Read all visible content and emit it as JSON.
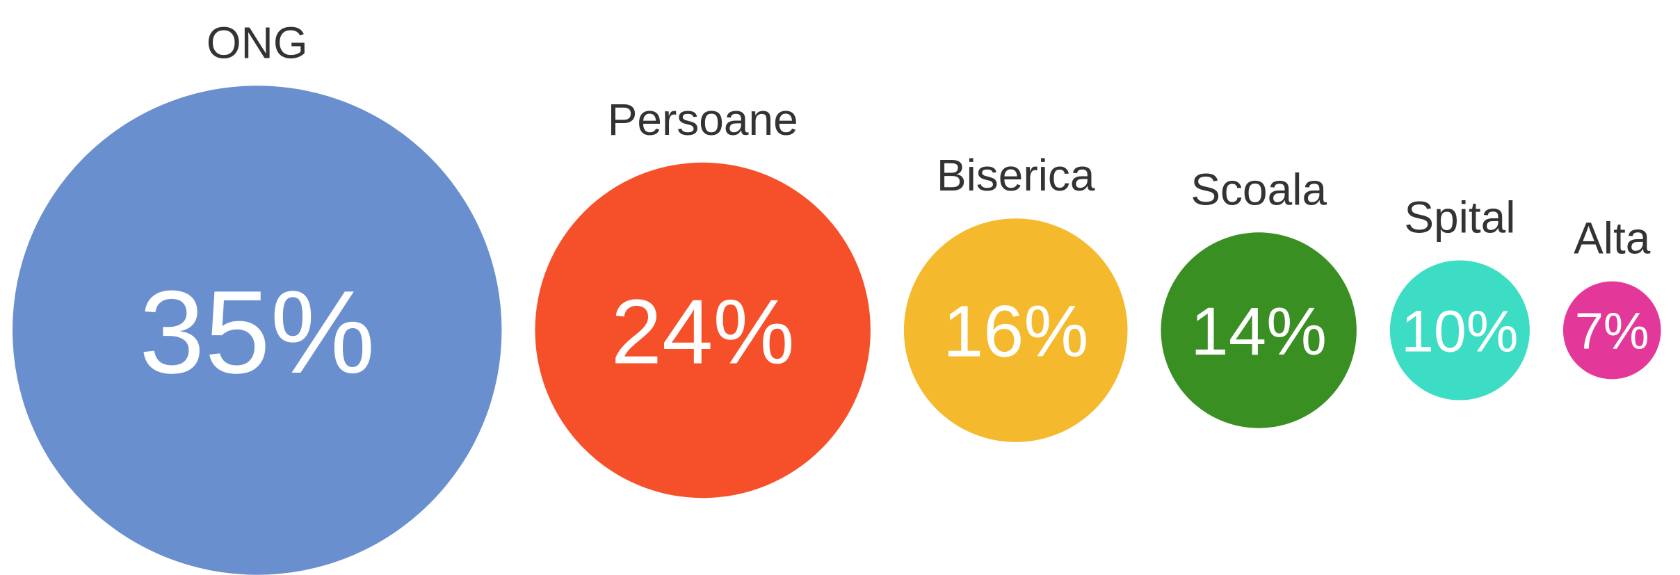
{
  "chart_data": {
    "type": "bubble",
    "categories": [
      "ONG",
      "Persoane",
      "Biserica",
      "Scoala",
      "Spital",
      "Alta"
    ],
    "values": [
      35,
      24,
      16,
      14,
      10,
      7
    ],
    "value_labels": [
      "35%",
      "24%",
      "16%",
      "14%",
      "10%",
      "7%"
    ],
    "colors": [
      "#6a8fcf",
      "#f5502a",
      "#f5b92e",
      "#3a8f22",
      "#3ddcc4",
      "#e3389a"
    ]
  }
}
